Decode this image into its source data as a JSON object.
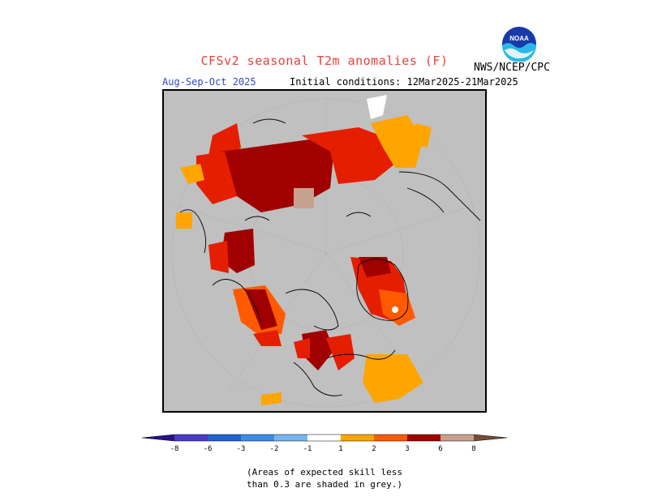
{
  "header": {
    "title": "CFSv2 seasonal T2m anomalies (F)",
    "agency": "NWS/NCEP/CPC",
    "season": "Aug-Sep-Oct 2025",
    "initial_conditions": "Initial conditions: 12Mar2025-21Mar2025",
    "logo_text": "NOAA"
  },
  "legend": {
    "tick_labels": [
      "-8",
      "-6",
      "-3",
      "-2",
      "-1",
      "1",
      "2",
      "3",
      "6",
      "8"
    ],
    "colors": {
      "lt_-8": "#2a0e8a",
      "-8_-6": "#4a3cc8",
      "-6_-3": "#1e64d2",
      "-3_-2": "#3c8ce6",
      "-2_-1": "#78b4f0",
      "-1_1": "#ffffff",
      "1_2": "#ffa500",
      "2_3": "#ff5a00",
      "3_6": "#e61e00",
      "6_8": "#a00000",
      "gt_8": "#c8a090",
      "gt_8_tip": "#7a4a3a",
      "no_skill": "#c0c0c0"
    }
  },
  "footnote": {
    "line1": "(Areas of expected skill less",
    "line2": "than 0.3 are shaded in grey.)"
  }
}
